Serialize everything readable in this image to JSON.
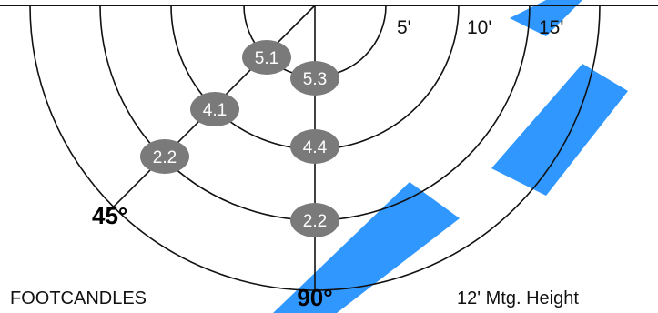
{
  "distance_labels": [
    "5'",
    "10'",
    "15'"
  ],
  "angle_labels": [
    "45°",
    "90°"
  ],
  "footcandle_values": [
    "5.1",
    "5.3",
    "4.1",
    "4.4",
    "2.2",
    "2.2"
  ],
  "footer": {
    "units": "FOOTCANDLES",
    "mounting_height": "12' Mtg. Height"
  },
  "colors": {
    "lines": "#111111",
    "value_badge": "#7a7a7a",
    "watermark": "#1a8cff"
  }
}
